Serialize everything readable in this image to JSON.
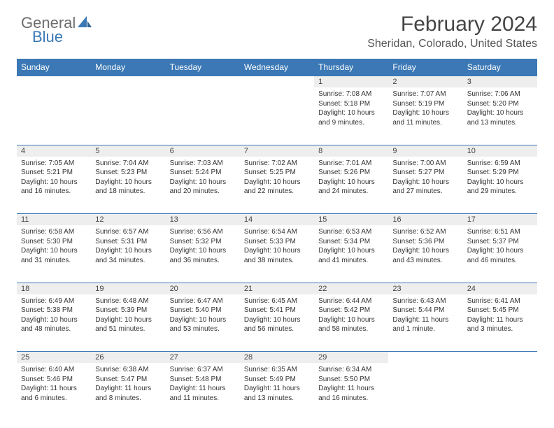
{
  "logo": {
    "text1": "General",
    "text2": "Blue"
  },
  "header": {
    "title": "February 2024",
    "location": "Sheridan, Colorado, United States"
  },
  "colors": {
    "header_bg": "#3b78b5",
    "header_fg": "#ffffff",
    "daynum_bg": "#eeeeee",
    "border": "#3b78b5",
    "text": "#333333"
  },
  "weekdays": [
    "Sunday",
    "Monday",
    "Tuesday",
    "Wednesday",
    "Thursday",
    "Friday",
    "Saturday"
  ],
  "weeks": [
    {
      "nums": [
        "",
        "",
        "",
        "",
        "1",
        "2",
        "3"
      ],
      "cells": [
        null,
        null,
        null,
        null,
        {
          "sunrise": "Sunrise: 7:08 AM",
          "sunset": "Sunset: 5:18 PM",
          "daylight": "Daylight: 10 hours and 9 minutes."
        },
        {
          "sunrise": "Sunrise: 7:07 AM",
          "sunset": "Sunset: 5:19 PM",
          "daylight": "Daylight: 10 hours and 11 minutes."
        },
        {
          "sunrise": "Sunrise: 7:06 AM",
          "sunset": "Sunset: 5:20 PM",
          "daylight": "Daylight: 10 hours and 13 minutes."
        }
      ]
    },
    {
      "nums": [
        "4",
        "5",
        "6",
        "7",
        "8",
        "9",
        "10"
      ],
      "cells": [
        {
          "sunrise": "Sunrise: 7:05 AM",
          "sunset": "Sunset: 5:21 PM",
          "daylight": "Daylight: 10 hours and 16 minutes."
        },
        {
          "sunrise": "Sunrise: 7:04 AM",
          "sunset": "Sunset: 5:23 PM",
          "daylight": "Daylight: 10 hours and 18 minutes."
        },
        {
          "sunrise": "Sunrise: 7:03 AM",
          "sunset": "Sunset: 5:24 PM",
          "daylight": "Daylight: 10 hours and 20 minutes."
        },
        {
          "sunrise": "Sunrise: 7:02 AM",
          "sunset": "Sunset: 5:25 PM",
          "daylight": "Daylight: 10 hours and 22 minutes."
        },
        {
          "sunrise": "Sunrise: 7:01 AM",
          "sunset": "Sunset: 5:26 PM",
          "daylight": "Daylight: 10 hours and 24 minutes."
        },
        {
          "sunrise": "Sunrise: 7:00 AM",
          "sunset": "Sunset: 5:27 PM",
          "daylight": "Daylight: 10 hours and 27 minutes."
        },
        {
          "sunrise": "Sunrise: 6:59 AM",
          "sunset": "Sunset: 5:29 PM",
          "daylight": "Daylight: 10 hours and 29 minutes."
        }
      ]
    },
    {
      "nums": [
        "11",
        "12",
        "13",
        "14",
        "15",
        "16",
        "17"
      ],
      "cells": [
        {
          "sunrise": "Sunrise: 6:58 AM",
          "sunset": "Sunset: 5:30 PM",
          "daylight": "Daylight: 10 hours and 31 minutes."
        },
        {
          "sunrise": "Sunrise: 6:57 AM",
          "sunset": "Sunset: 5:31 PM",
          "daylight": "Daylight: 10 hours and 34 minutes."
        },
        {
          "sunrise": "Sunrise: 6:56 AM",
          "sunset": "Sunset: 5:32 PM",
          "daylight": "Daylight: 10 hours and 36 minutes."
        },
        {
          "sunrise": "Sunrise: 6:54 AM",
          "sunset": "Sunset: 5:33 PM",
          "daylight": "Daylight: 10 hours and 38 minutes."
        },
        {
          "sunrise": "Sunrise: 6:53 AM",
          "sunset": "Sunset: 5:34 PM",
          "daylight": "Daylight: 10 hours and 41 minutes."
        },
        {
          "sunrise": "Sunrise: 6:52 AM",
          "sunset": "Sunset: 5:36 PM",
          "daylight": "Daylight: 10 hours and 43 minutes."
        },
        {
          "sunrise": "Sunrise: 6:51 AM",
          "sunset": "Sunset: 5:37 PM",
          "daylight": "Daylight: 10 hours and 46 minutes."
        }
      ]
    },
    {
      "nums": [
        "18",
        "19",
        "20",
        "21",
        "22",
        "23",
        "24"
      ],
      "cells": [
        {
          "sunrise": "Sunrise: 6:49 AM",
          "sunset": "Sunset: 5:38 PM",
          "daylight": "Daylight: 10 hours and 48 minutes."
        },
        {
          "sunrise": "Sunrise: 6:48 AM",
          "sunset": "Sunset: 5:39 PM",
          "daylight": "Daylight: 10 hours and 51 minutes."
        },
        {
          "sunrise": "Sunrise: 6:47 AM",
          "sunset": "Sunset: 5:40 PM",
          "daylight": "Daylight: 10 hours and 53 minutes."
        },
        {
          "sunrise": "Sunrise: 6:45 AM",
          "sunset": "Sunset: 5:41 PM",
          "daylight": "Daylight: 10 hours and 56 minutes."
        },
        {
          "sunrise": "Sunrise: 6:44 AM",
          "sunset": "Sunset: 5:42 PM",
          "daylight": "Daylight: 10 hours and 58 minutes."
        },
        {
          "sunrise": "Sunrise: 6:43 AM",
          "sunset": "Sunset: 5:44 PM",
          "daylight": "Daylight: 11 hours and 1 minute."
        },
        {
          "sunrise": "Sunrise: 6:41 AM",
          "sunset": "Sunset: 5:45 PM",
          "daylight": "Daylight: 11 hours and 3 minutes."
        }
      ]
    },
    {
      "nums": [
        "25",
        "26",
        "27",
        "28",
        "29",
        "",
        ""
      ],
      "cells": [
        {
          "sunrise": "Sunrise: 6:40 AM",
          "sunset": "Sunset: 5:46 PM",
          "daylight": "Daylight: 11 hours and 6 minutes."
        },
        {
          "sunrise": "Sunrise: 6:38 AM",
          "sunset": "Sunset: 5:47 PM",
          "daylight": "Daylight: 11 hours and 8 minutes."
        },
        {
          "sunrise": "Sunrise: 6:37 AM",
          "sunset": "Sunset: 5:48 PM",
          "daylight": "Daylight: 11 hours and 11 minutes."
        },
        {
          "sunrise": "Sunrise: 6:35 AM",
          "sunset": "Sunset: 5:49 PM",
          "daylight": "Daylight: 11 hours and 13 minutes."
        },
        {
          "sunrise": "Sunrise: 6:34 AM",
          "sunset": "Sunset: 5:50 PM",
          "daylight": "Daylight: 11 hours and 16 minutes."
        },
        null,
        null
      ]
    }
  ]
}
